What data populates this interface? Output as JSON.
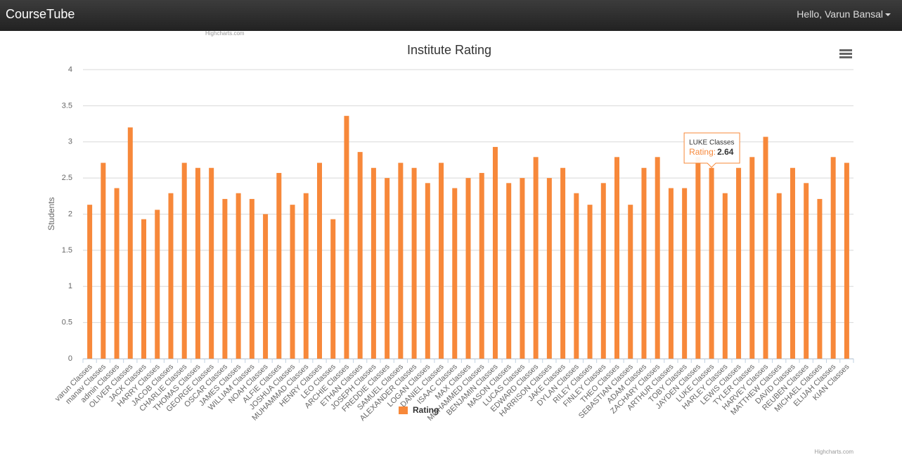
{
  "navbar": {
    "brand": "CourseTube",
    "user": "Hello, Varun Bansal"
  },
  "credits": {
    "top": "Highcharts.com",
    "bottom": "Highcharts.com"
  },
  "chart_data": {
    "type": "bar",
    "title": "Institute Rating",
    "y_label": "Students",
    "categories": [
      "varun Classes",
      "manav Classes",
      "admin Classes",
      "OLIVER Classes",
      "JACK Classes",
      "HARRY Classes",
      "JACOB Classes",
      "CHARLIE Classes",
      "THOMAS Classes",
      "GEORGE Classes",
      "OSCAR Classes",
      "JAMES Classes",
      "WILLIAM Classes",
      "NOAH Classes",
      "ALFIE Classes",
      "JOSHUA Classes",
      "MUHAMMAD Classes",
      "HENRY Classes",
      "LEO Classes",
      "ARCHIE Classes",
      "ETHAN Classes",
      "JOSEPH Classes",
      "FREDDIE Classes",
      "SAMUEL Classes",
      "ALEXANDER Classes",
      "LOGAN Classes",
      "DANIEL Classes",
      "ISAAC Classes",
      "MAX Classes",
      "MOHAMMED Classes",
      "BENJAMIN Classes",
      "MASON Classes",
      "LUCAS Classes",
      "EDWARD Classes",
      "HARRISON Classes",
      "JAKE Classes",
      "DYLAN Classes",
      "RILEY Classes",
      "FINLEY Classes",
      "THEO Classes",
      "SEBASTIAN Classes",
      "ADAM Classes",
      "ZACHARY Classes",
      "ARTHUR Classes",
      "TOBY Classes",
      "JAYDEN Classes",
      "LUKE Classes",
      "HARLEY Classes",
      "LEWIS Classes",
      "TYLER Classes",
      "HARVEY Classes",
      "MATTHEW Classes",
      "DAVID Classes",
      "REUBEN Classes",
      "MICHAEL Classes",
      "ELIJAH Classes",
      "KIAN Classes"
    ],
    "series": [
      {
        "name": "Rating",
        "color": "#f7883a",
        "values": [
          2.13,
          2.71,
          2.36,
          3.2,
          1.93,
          2.06,
          2.29,
          2.71,
          2.64,
          2.64,
          2.21,
          2.29,
          2.21,
          2.0,
          2.57,
          2.13,
          2.29,
          2.71,
          1.93,
          3.36,
          2.86,
          2.64,
          2.5,
          2.71,
          2.64,
          2.43,
          2.71,
          2.36,
          2.5,
          2.57,
          2.93,
          2.43,
          2.5,
          2.79,
          2.5,
          2.64,
          2.29,
          2.13,
          2.43,
          2.79,
          2.13,
          2.64,
          2.79,
          2.36,
          2.36,
          2.79,
          2.64,
          2.29,
          2.64,
          2.79,
          3.07,
          2.29,
          2.64,
          2.43,
          2.21,
          2.79,
          2.71
        ]
      }
    ],
    "ylim": [
      0,
      4
    ],
    "yticks": [
      0,
      0.5,
      1,
      1.5,
      2,
      2.5,
      3,
      3.5,
      4
    ],
    "grid": true,
    "tooltip": {
      "title": "LUKE Classes",
      "label": "Rating:",
      "value": 2.64
    }
  }
}
